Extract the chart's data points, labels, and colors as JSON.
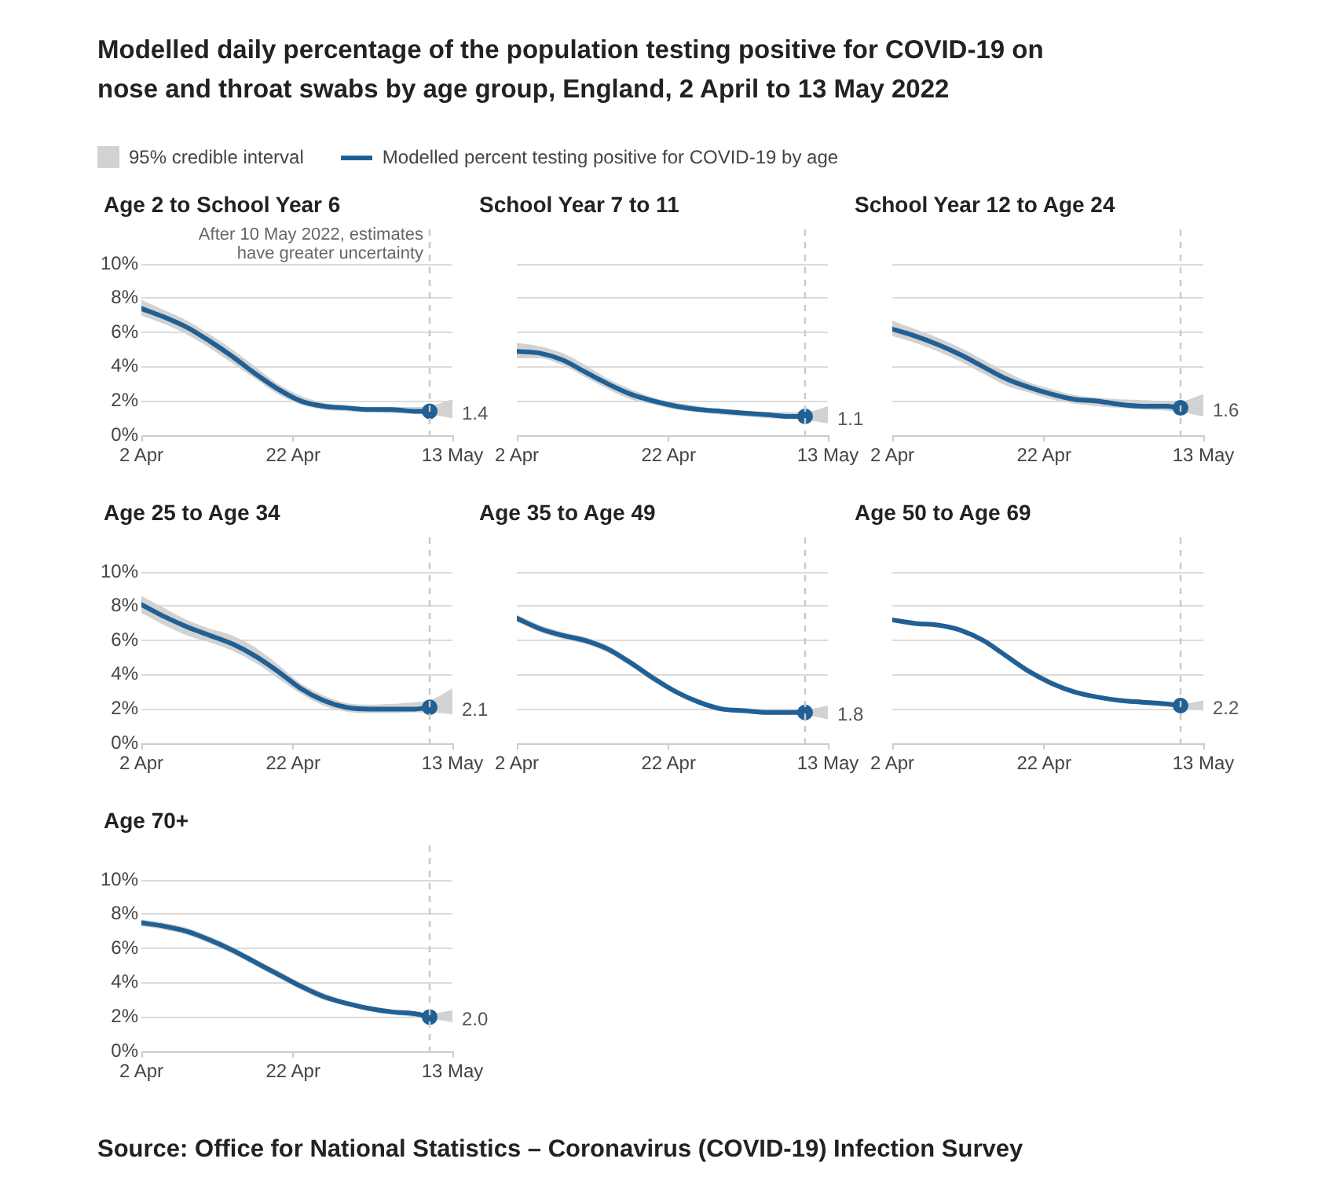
{
  "chart_data": [
    {
      "type": "line",
      "title": "Age 2 to School Year 6",
      "annotations": [
        "Modelled daily percentage of the population testing positive for COVID-19 on nose and throat swabs by age group, England, 2 April to 13 May 2022",
        "95% credible interval"
      ],
      "legend": "top",
      "grid": "y",
      "line_style": "solid",
      "x": [
        "2022-04-02",
        "2022-04-05",
        "2022-04-08",
        "2022-04-11",
        "2022-04-14",
        "2022-04-17",
        "2022-04-20",
        "2022-04-23",
        "2022-04-26",
        "2022-04-29",
        "2022-05-02",
        "2022-05-05",
        "2022-05-08",
        "2022-05-10",
        "2022-05-13"
      ],
      "xlim": [
        "2022-04-02",
        "2022-05-13"
      ],
      "xticks": [
        {
          "value": "2022-04-02",
          "label": "2 Apr"
        },
        {
          "value": "2022-04-22",
          "label": "22 Apr"
        },
        {
          "value": "2022-05-13",
          "label": "13 May"
        }
      ],
      "ylim": [
        0,
        10
      ],
      "yticks": [
        {
          "value": 0,
          "label": "0%"
        },
        {
          "value": 2,
          "label": "2%"
        },
        {
          "value": 4,
          "label": "4%"
        },
        {
          "value": 6,
          "label": "6%"
        },
        {
          "value": 8,
          "label": "8%"
        },
        {
          "value": 10,
          "label": "10%"
        }
      ],
      "ref_lines": [
        {
          "axis": "x",
          "value": "2022-05-10",
          "label": "After 10 May 2022, estimates have greater uncertainty",
          "color": "#c8c8c8",
          "line_style": "dashed"
        }
      ],
      "series": [
        {
          "name": "Modelled percent testing positive for COVID-19 by age",
          "color": "#206095",
          "values": [
            7.4,
            6.9,
            6.3,
            5.5,
            4.6,
            3.6,
            2.7,
            2.0,
            1.7,
            1.6,
            1.5,
            1.5,
            1.4,
            1.4,
            null
          ],
          "lower": [
            7.0,
            6.5,
            5.9,
            5.1,
            4.2,
            3.3,
            2.4,
            1.8,
            1.5,
            1.4,
            1.35,
            1.3,
            1.25,
            1.2,
            1.0
          ],
          "upper": [
            7.9,
            7.3,
            6.7,
            5.9,
            5.0,
            4.0,
            3.0,
            2.3,
            1.9,
            1.7,
            1.65,
            1.65,
            1.65,
            1.7,
            2.1
          ],
          "value_labels": [
            null,
            null,
            null,
            null,
            null,
            null,
            null,
            null,
            null,
            null,
            null,
            null,
            null,
            "1.4",
            null
          ]
        }
      ]
    },
    {
      "type": "line",
      "title": "School Year 7 to 11",
      "grid": "y",
      "line_style": "solid",
      "tick_labels": "x",
      "x": [
        "2022-04-02",
        "2022-04-05",
        "2022-04-08",
        "2022-04-11",
        "2022-04-14",
        "2022-04-17",
        "2022-04-20",
        "2022-04-23",
        "2022-04-26",
        "2022-04-29",
        "2022-05-02",
        "2022-05-05",
        "2022-05-08",
        "2022-05-10",
        "2022-05-13"
      ],
      "xlim": [
        "2022-04-02",
        "2022-05-13"
      ],
      "xticks": [
        {
          "value": "2022-04-02",
          "label": "2 Apr"
        },
        {
          "value": "2022-04-22",
          "label": "22 Apr"
        },
        {
          "value": "2022-05-13",
          "label": "13 May"
        }
      ],
      "ylim": [
        0,
        10
      ],
      "yticks": [
        0,
        2,
        4,
        6,
        8,
        10
      ],
      "ref_lines": [
        {
          "axis": "x",
          "value": "2022-05-10",
          "color": "#c8c8c8",
          "line_style": "dashed"
        }
      ],
      "series": [
        {
          "color": "#206095",
          "values": [
            4.9,
            4.8,
            4.4,
            3.7,
            3.0,
            2.4,
            2.0,
            1.7,
            1.5,
            1.4,
            1.3,
            1.2,
            1.1,
            1.1,
            null
          ],
          "lower": [
            4.5,
            4.5,
            4.1,
            3.4,
            2.7,
            2.1,
            1.8,
            1.5,
            1.35,
            1.2,
            1.1,
            1.0,
            0.95,
            0.9,
            0.7
          ],
          "upper": [
            5.4,
            5.2,
            4.8,
            4.1,
            3.3,
            2.7,
            2.2,
            1.9,
            1.7,
            1.5,
            1.4,
            1.35,
            1.35,
            1.35,
            1.7
          ],
          "value_labels": [
            null,
            null,
            null,
            null,
            null,
            null,
            null,
            null,
            null,
            null,
            null,
            null,
            null,
            "1.1",
            null
          ]
        }
      ]
    },
    {
      "type": "line",
      "title": "School Year 12 to Age 24",
      "grid": "y",
      "line_style": "solid",
      "tick_labels": "x",
      "x": [
        "2022-04-02",
        "2022-04-05",
        "2022-04-08",
        "2022-04-11",
        "2022-04-14",
        "2022-04-17",
        "2022-04-20",
        "2022-04-23",
        "2022-04-26",
        "2022-04-29",
        "2022-05-02",
        "2022-05-05",
        "2022-05-08",
        "2022-05-10",
        "2022-05-13"
      ],
      "xlim": [
        "2022-04-02",
        "2022-05-13"
      ],
      "xticks": [
        {
          "value": "2022-04-02",
          "label": "2 Apr"
        },
        {
          "value": "2022-04-22",
          "label": "22 Apr"
        },
        {
          "value": "2022-05-13",
          "label": "13 May"
        }
      ],
      "ylim": [
        0,
        10
      ],
      "yticks": [
        0,
        2,
        4,
        6,
        8,
        10
      ],
      "ref_lines": [
        {
          "axis": "x",
          "value": "2022-05-10",
          "color": "#c8c8c8",
          "line_style": "dashed"
        }
      ],
      "series": [
        {
          "color": "#206095",
          "values": [
            6.2,
            5.8,
            5.3,
            4.7,
            4.0,
            3.3,
            2.8,
            2.4,
            2.1,
            2.0,
            1.8,
            1.7,
            1.7,
            1.6,
            null
          ],
          "lower": [
            5.8,
            5.4,
            4.9,
            4.3,
            3.6,
            2.9,
            2.5,
            2.1,
            1.85,
            1.7,
            1.6,
            1.5,
            1.45,
            1.35,
            1.1
          ],
          "upper": [
            6.7,
            6.2,
            5.7,
            5.1,
            4.4,
            3.7,
            3.1,
            2.7,
            2.35,
            2.2,
            2.1,
            2.05,
            2.0,
            2.0,
            2.4
          ],
          "value_labels": [
            null,
            null,
            null,
            null,
            null,
            null,
            null,
            null,
            null,
            null,
            null,
            null,
            null,
            "1.6",
            null
          ]
        }
      ]
    },
    {
      "type": "line",
      "title": "Age 25 to Age 34",
      "grid": "y",
      "line_style": "solid",
      "x": [
        "2022-04-02",
        "2022-04-05",
        "2022-04-08",
        "2022-04-11",
        "2022-04-14",
        "2022-04-17",
        "2022-04-20",
        "2022-04-23",
        "2022-04-26",
        "2022-04-29",
        "2022-05-02",
        "2022-05-05",
        "2022-05-08",
        "2022-05-10",
        "2022-05-13"
      ],
      "xlim": [
        "2022-04-02",
        "2022-05-13"
      ],
      "xticks": [
        {
          "value": "2022-04-02",
          "label": "2 Apr"
        },
        {
          "value": "2022-04-22",
          "label": "22 Apr"
        },
        {
          "value": "2022-05-13",
          "label": "13 May"
        }
      ],
      "ylim": [
        0,
        10
      ],
      "yticks": [
        {
          "value": 0,
          "label": "0%"
        },
        {
          "value": 2,
          "label": "2%"
        },
        {
          "value": 4,
          "label": "4%"
        },
        {
          "value": 6,
          "label": "6%"
        },
        {
          "value": 8,
          "label": "8%"
        },
        {
          "value": 10,
          "label": "10%"
        }
      ],
      "ref_lines": [
        {
          "axis": "x",
          "value": "2022-05-10",
          "color": "#c8c8c8",
          "line_style": "dashed"
        }
      ],
      "series": [
        {
          "color": "#206095",
          "values": [
            8.1,
            7.4,
            6.8,
            6.3,
            5.8,
            5.1,
            4.2,
            3.2,
            2.5,
            2.1,
            2.0,
            2.0,
            2.0,
            2.1,
            null
          ],
          "lower": [
            7.6,
            6.9,
            6.3,
            5.9,
            5.4,
            4.7,
            3.8,
            2.9,
            2.2,
            1.85,
            1.75,
            1.75,
            1.8,
            1.8,
            1.7
          ],
          "upper": [
            8.6,
            7.9,
            7.2,
            6.7,
            6.3,
            5.6,
            4.6,
            3.5,
            2.8,
            2.35,
            2.25,
            2.3,
            2.4,
            2.5,
            3.2
          ],
          "value_labels": [
            null,
            null,
            null,
            null,
            null,
            null,
            null,
            null,
            null,
            null,
            null,
            null,
            null,
            "2.1",
            null
          ]
        }
      ]
    },
    {
      "type": "line",
      "title": "Age 35 to Age 49",
      "grid": "y",
      "line_style": "solid",
      "tick_labels": "x",
      "x": [
        "2022-04-02",
        "2022-04-05",
        "2022-04-08",
        "2022-04-11",
        "2022-04-14",
        "2022-04-17",
        "2022-04-20",
        "2022-04-23",
        "2022-04-26",
        "2022-04-29",
        "2022-05-02",
        "2022-05-05",
        "2022-05-08",
        "2022-05-10",
        "2022-05-13"
      ],
      "xlim": [
        "2022-04-02",
        "2022-05-13"
      ],
      "xticks": [
        {
          "value": "2022-04-02",
          "label": "2 Apr"
        },
        {
          "value": "2022-04-22",
          "label": "22 Apr"
        },
        {
          "value": "2022-05-13",
          "label": "13 May"
        }
      ],
      "ylim": [
        0,
        10
      ],
      "yticks": [
        0,
        2,
        4,
        6,
        8,
        10
      ],
      "ref_lines": [
        {
          "axis": "x",
          "value": "2022-05-10",
          "color": "#c8c8c8",
          "line_style": "dashed"
        }
      ],
      "series": [
        {
          "color": "#206095",
          "values": [
            7.3,
            6.7,
            6.3,
            6.0,
            5.5,
            4.7,
            3.8,
            3.0,
            2.4,
            2.0,
            1.9,
            1.8,
            1.8,
            1.8,
            null
          ],
          "lower": [
            7.1,
            6.5,
            6.1,
            5.8,
            5.3,
            4.5,
            3.6,
            2.85,
            2.25,
            1.9,
            1.75,
            1.7,
            1.7,
            1.65,
            1.4
          ],
          "upper": [
            7.5,
            6.9,
            6.5,
            6.2,
            5.7,
            4.9,
            4.0,
            3.15,
            2.55,
            2.15,
            1.95,
            1.9,
            1.9,
            1.95,
            2.2
          ],
          "value_labels": [
            null,
            null,
            null,
            null,
            null,
            null,
            null,
            null,
            null,
            null,
            null,
            null,
            null,
            "1.8",
            null
          ]
        }
      ]
    },
    {
      "type": "line",
      "title": "Age 50 to Age 69",
      "grid": "y",
      "line_style": "solid",
      "tick_labels": "x",
      "x": [
        "2022-04-02",
        "2022-04-05",
        "2022-04-08",
        "2022-04-11",
        "2022-04-14",
        "2022-04-17",
        "2022-04-20",
        "2022-04-23",
        "2022-04-26",
        "2022-04-29",
        "2022-05-02",
        "2022-05-05",
        "2022-05-08",
        "2022-05-10",
        "2022-05-13"
      ],
      "xlim": [
        "2022-04-02",
        "2022-05-13"
      ],
      "xticks": [
        {
          "value": "2022-04-02",
          "label": "2 Apr"
        },
        {
          "value": "2022-04-22",
          "label": "22 Apr"
        },
        {
          "value": "2022-05-13",
          "label": "13 May"
        }
      ],
      "ylim": [
        0,
        10
      ],
      "yticks": [
        0,
        2,
        4,
        6,
        8,
        10
      ],
      "ref_lines": [
        {
          "axis": "x",
          "value": "2022-05-10",
          "color": "#c8c8c8",
          "line_style": "dashed"
        }
      ],
      "series": [
        {
          "color": "#206095",
          "values": [
            7.2,
            7.0,
            6.9,
            6.6,
            6.0,
            5.1,
            4.2,
            3.5,
            3.0,
            2.7,
            2.5,
            2.4,
            2.3,
            2.2,
            null
          ],
          "lower": [
            7.1,
            6.9,
            6.8,
            6.5,
            5.9,
            5.0,
            4.1,
            3.4,
            2.9,
            2.6,
            2.4,
            2.25,
            2.15,
            2.1,
            1.9
          ],
          "upper": [
            7.3,
            7.1,
            7.0,
            6.7,
            6.1,
            5.2,
            4.3,
            3.6,
            3.1,
            2.8,
            2.6,
            2.45,
            2.35,
            2.3,
            2.5
          ],
          "value_labels": [
            null,
            null,
            null,
            null,
            null,
            null,
            null,
            null,
            null,
            null,
            null,
            null,
            null,
            "2.2",
            null
          ]
        }
      ]
    },
    {
      "type": "line",
      "title": "Age 70+",
      "grid": "y",
      "line_style": "solid",
      "annotations": [
        "Source: Office for National Statistics – Coronavirus (COVID-19) Infection Survey"
      ],
      "x": [
        "2022-04-02",
        "2022-04-05",
        "2022-04-08",
        "2022-04-11",
        "2022-04-14",
        "2022-04-17",
        "2022-04-20",
        "2022-04-23",
        "2022-04-26",
        "2022-04-29",
        "2022-05-02",
        "2022-05-05",
        "2022-05-08",
        "2022-05-10",
        "2022-05-13"
      ],
      "xlim": [
        "2022-04-02",
        "2022-05-13"
      ],
      "xticks": [
        {
          "value": "2022-04-02",
          "label": "2 Apr"
        },
        {
          "value": "2022-04-22",
          "label": "22 Apr"
        },
        {
          "value": "2022-05-13",
          "label": "13 May"
        }
      ],
      "ylim": [
        0,
        10
      ],
      "yticks": [
        {
          "value": 0,
          "label": "0%"
        },
        {
          "value": 2,
          "label": "2%"
        },
        {
          "value": 4,
          "label": "4%"
        },
        {
          "value": 6,
          "label": "6%"
        },
        {
          "value": 8,
          "label": "8%"
        },
        {
          "value": 10,
          "label": "10%"
        }
      ],
      "ref_lines": [
        {
          "axis": "x",
          "value": "2022-05-10",
          "color": "#c8c8c8",
          "line_style": "dashed"
        }
      ],
      "series": [
        {
          "color": "#206095",
          "values": [
            7.5,
            7.3,
            7.0,
            6.5,
            5.9,
            5.2,
            4.5,
            3.8,
            3.2,
            2.8,
            2.5,
            2.3,
            2.2,
            2.0,
            null
          ],
          "lower": [
            7.3,
            7.1,
            6.8,
            6.3,
            5.7,
            5.0,
            4.3,
            3.6,
            3.0,
            2.65,
            2.35,
            2.15,
            2.0,
            1.9,
            1.7
          ],
          "upper": [
            7.7,
            7.5,
            7.2,
            6.7,
            6.1,
            5.4,
            4.7,
            4.0,
            3.4,
            2.95,
            2.65,
            2.45,
            2.3,
            2.2,
            2.4
          ],
          "value_labels": [
            null,
            null,
            null,
            null,
            null,
            null,
            null,
            null,
            null,
            null,
            null,
            null,
            null,
            "2.0",
            null
          ]
        }
      ]
    }
  ]
}
